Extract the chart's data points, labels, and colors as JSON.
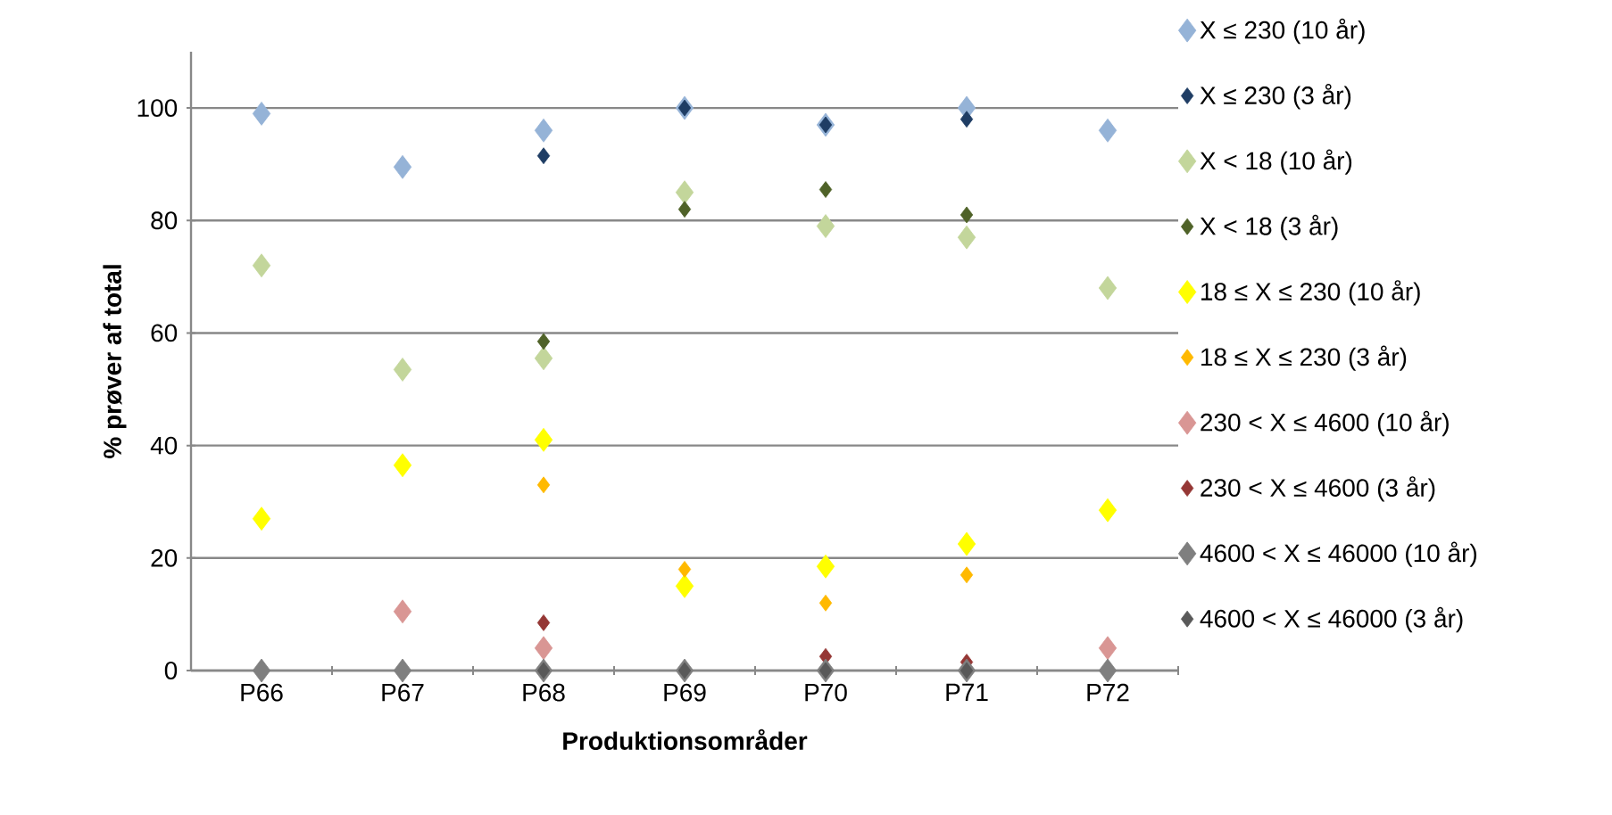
{
  "chart_data": {
    "type": "scatter",
    "xlabel": "Produktionsområder",
    "ylabel": "% prøver af total",
    "categories": [
      "P66",
      "P67",
      "P68",
      "P69",
      "P70",
      "P71",
      "P72"
    ],
    "ylim": [
      0,
      110
    ],
    "yticks": [
      0,
      20,
      40,
      60,
      80,
      100
    ],
    "grid": "y",
    "legend": "right",
    "marker": "diamond",
    "series": [
      {
        "name": "X ≤ 230 (10 år)",
        "color": "#95b3d7",
        "values": [
          99,
          89.5,
          96,
          100,
          97,
          100,
          96
        ]
      },
      {
        "name": "X ≤ 230 (3 år)",
        "color": "#1f3d64",
        "values": [
          null,
          null,
          91.5,
          100,
          97,
          98,
          null
        ]
      },
      {
        "name": "X < 18 (10 år)",
        "color": "#c3d69b",
        "values": [
          72,
          53.5,
          55.5,
          85,
          79,
          77,
          68
        ]
      },
      {
        "name": "X < 18 (3 år)",
        "color": "#4f6228",
        "values": [
          null,
          null,
          58.5,
          82,
          85.5,
          81,
          null
        ]
      },
      {
        "name": "18 ≤ X ≤ 230 (10 år)",
        "color": "#ffff00",
        "values": [
          27,
          36.5,
          41,
          15,
          18.5,
          22.5,
          28.5
        ]
      },
      {
        "name": "18 ≤ X ≤ 230 (3 år)",
        "color": "#ffb900",
        "values": [
          null,
          null,
          33,
          18,
          12,
          17,
          null
        ]
      },
      {
        "name": "230 < X ≤ 4600 (10 år)",
        "color": "#d99694",
        "values": [
          null,
          10.5,
          4,
          null,
          null,
          null,
          4
        ]
      },
      {
        "name": "230 < X ≤ 4600 (3 år)",
        "color": "#953735",
        "values": [
          null,
          null,
          8.5,
          null,
          2.5,
          1.5,
          null
        ]
      },
      {
        "name": "4600 < X ≤ 46000 (10 år)",
        "color": "#7f7f7f",
        "values": [
          0,
          0,
          0,
          0,
          0,
          0,
          0
        ]
      },
      {
        "name": "4600 < X ≤ 46000 (3 år)",
        "color": "#595959",
        "values": [
          null,
          null,
          0,
          0,
          0,
          0,
          null
        ]
      }
    ]
  }
}
